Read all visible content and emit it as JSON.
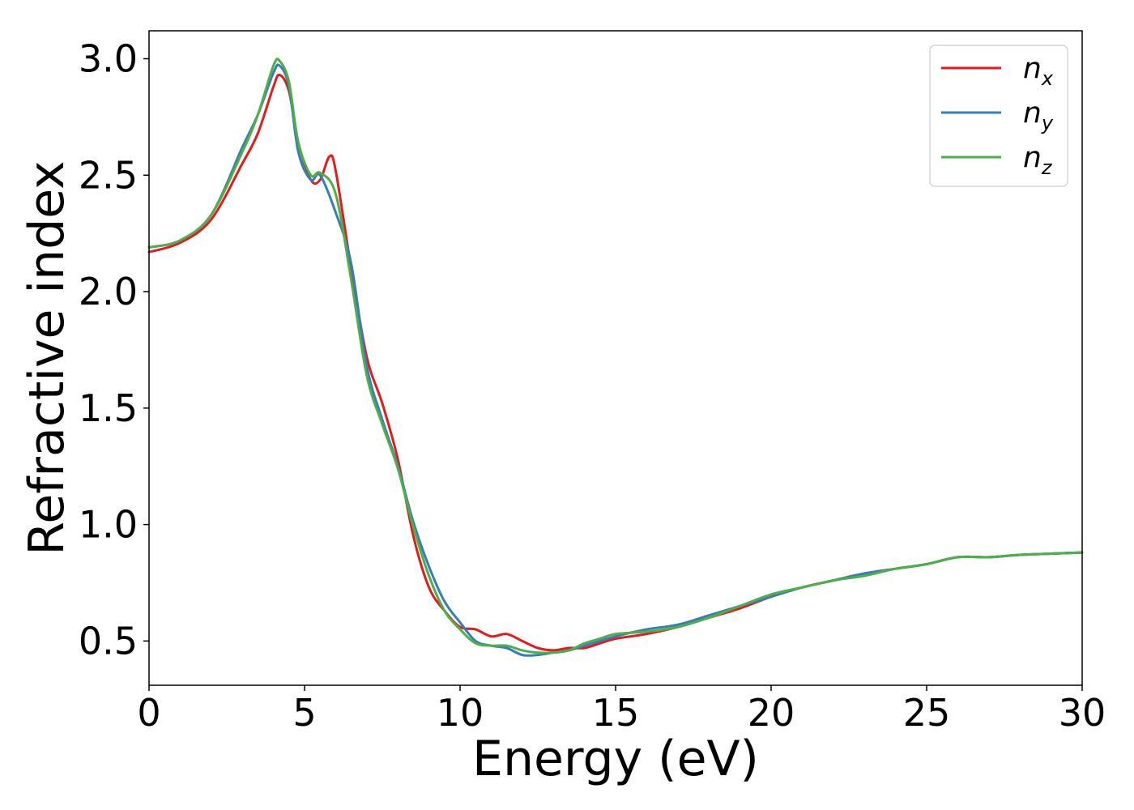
{
  "chart_data": {
    "type": "line",
    "title": "",
    "xlabel": "Energy (eV)",
    "ylabel": "Refractive index",
    "xlim": [
      0,
      30
    ],
    "ylim": [
      0.31,
      3.12
    ],
    "xticks": [
      0,
      5,
      10,
      15,
      20,
      25,
      30
    ],
    "yticks": [
      0.5,
      1.0,
      1.5,
      2.0,
      2.5,
      3.0
    ],
    "xtick_labels": [
      "0",
      "5",
      "10",
      "15",
      "20",
      "25",
      "30"
    ],
    "ytick_labels": [
      "0.5",
      "1.0",
      "1.5",
      "2.0",
      "2.5",
      "3.0"
    ],
    "grid": false,
    "legend_position": "top-right",
    "series": [
      {
        "name": "n_x",
        "label_base": "n",
        "label_sub": "x",
        "color": "#e41a1c",
        "points": [
          [
            0,
            2.17
          ],
          [
            1,
            2.21
          ],
          [
            2,
            2.31
          ],
          [
            3,
            2.55
          ],
          [
            3.5,
            2.68
          ],
          [
            4,
            2.88
          ],
          [
            4.2,
            2.93
          ],
          [
            4.5,
            2.86
          ],
          [
            4.8,
            2.64
          ],
          [
            5.2,
            2.48
          ],
          [
            5.5,
            2.48
          ],
          [
            5.8,
            2.58
          ],
          [
            6.0,
            2.52
          ],
          [
            6.5,
            2.1
          ],
          [
            7,
            1.72
          ],
          [
            7.5,
            1.52
          ],
          [
            8,
            1.28
          ],
          [
            8.5,
            0.95
          ],
          [
            9,
            0.73
          ],
          [
            9.5,
            0.63
          ],
          [
            10,
            0.56
          ],
          [
            10.5,
            0.55
          ],
          [
            11,
            0.52
          ],
          [
            11.5,
            0.53
          ],
          [
            12,
            0.5
          ],
          [
            12.5,
            0.47
          ],
          [
            13,
            0.46
          ],
          [
            13.5,
            0.47
          ],
          [
            14,
            0.47
          ],
          [
            14.5,
            0.49
          ],
          [
            15,
            0.51
          ],
          [
            16,
            0.53
          ],
          [
            17,
            0.56
          ],
          [
            18,
            0.6
          ],
          [
            19,
            0.64
          ],
          [
            20,
            0.69
          ],
          [
            21,
            0.73
          ],
          [
            22,
            0.76
          ],
          [
            23,
            0.79
          ],
          [
            24,
            0.81
          ],
          [
            25,
            0.83
          ],
          [
            26,
            0.86
          ],
          [
            27,
            0.86
          ],
          [
            28,
            0.87
          ],
          [
            29,
            0.875
          ],
          [
            30,
            0.88
          ]
        ]
      },
      {
        "name": "n_y",
        "label_base": "n",
        "label_sub": "y",
        "color": "#377eb8",
        "points": [
          [
            0,
            2.19
          ],
          [
            1,
            2.22
          ],
          [
            2,
            2.33
          ],
          [
            3,
            2.62
          ],
          [
            3.5,
            2.76
          ],
          [
            4,
            2.94
          ],
          [
            4.2,
            2.97
          ],
          [
            4.5,
            2.88
          ],
          [
            4.8,
            2.6
          ],
          [
            5.2,
            2.48
          ],
          [
            5.5,
            2.5
          ],
          [
            6.0,
            2.34
          ],
          [
            6.5,
            2.12
          ],
          [
            7,
            1.68
          ],
          [
            7.5,
            1.45
          ],
          [
            8,
            1.25
          ],
          [
            8.5,
            1.01
          ],
          [
            9,
            0.82
          ],
          [
            9.5,
            0.67
          ],
          [
            10,
            0.58
          ],
          [
            10.5,
            0.5
          ],
          [
            11,
            0.48
          ],
          [
            11.5,
            0.47
          ],
          [
            12,
            0.44
          ],
          [
            12.5,
            0.44
          ],
          [
            13,
            0.45
          ],
          [
            13.5,
            0.46
          ],
          [
            14,
            0.48
          ],
          [
            14.5,
            0.5
          ],
          [
            15,
            0.52
          ],
          [
            16,
            0.55
          ],
          [
            17,
            0.57
          ],
          [
            18,
            0.61
          ],
          [
            19,
            0.65
          ],
          [
            20,
            0.69
          ],
          [
            21,
            0.73
          ],
          [
            22,
            0.76
          ],
          [
            23,
            0.79
          ],
          [
            24,
            0.81
          ],
          [
            25,
            0.83
          ],
          [
            26,
            0.86
          ],
          [
            27,
            0.86
          ],
          [
            28,
            0.87
          ],
          [
            29,
            0.875
          ],
          [
            30,
            0.88
          ]
        ]
      },
      {
        "name": "n_z",
        "label_base": "n",
        "label_sub": "z",
        "color": "#4daf4a",
        "points": [
          [
            0,
            2.19
          ],
          [
            1,
            2.22
          ],
          [
            2,
            2.33
          ],
          [
            3,
            2.6
          ],
          [
            3.5,
            2.76
          ],
          [
            4,
            2.97
          ],
          [
            4.2,
            2.99
          ],
          [
            4.5,
            2.9
          ],
          [
            4.8,
            2.64
          ],
          [
            5.2,
            2.5
          ],
          [
            5.5,
            2.51
          ],
          [
            6.0,
            2.42
          ],
          [
            6.5,
            2.05
          ],
          [
            7,
            1.64
          ],
          [
            7.5,
            1.43
          ],
          [
            8,
            1.24
          ],
          [
            8.5,
            0.99
          ],
          [
            9,
            0.78
          ],
          [
            9.5,
            0.63
          ],
          [
            10,
            0.55
          ],
          [
            10.5,
            0.49
          ],
          [
            11,
            0.48
          ],
          [
            11.5,
            0.48
          ],
          [
            12,
            0.46
          ],
          [
            12.5,
            0.45
          ],
          [
            13,
            0.45
          ],
          [
            13.5,
            0.46
          ],
          [
            14,
            0.49
          ],
          [
            14.5,
            0.51
          ],
          [
            15,
            0.53
          ],
          [
            16,
            0.54
          ],
          [
            17,
            0.56
          ],
          [
            18,
            0.6
          ],
          [
            19,
            0.65
          ],
          [
            20,
            0.7
          ],
          [
            21,
            0.73
          ],
          [
            22,
            0.76
          ],
          [
            23,
            0.78
          ],
          [
            24,
            0.81
          ],
          [
            25,
            0.83
          ],
          [
            26,
            0.86
          ],
          [
            27,
            0.86
          ],
          [
            28,
            0.87
          ],
          [
            29,
            0.875
          ],
          [
            30,
            0.88
          ]
        ]
      }
    ]
  }
}
